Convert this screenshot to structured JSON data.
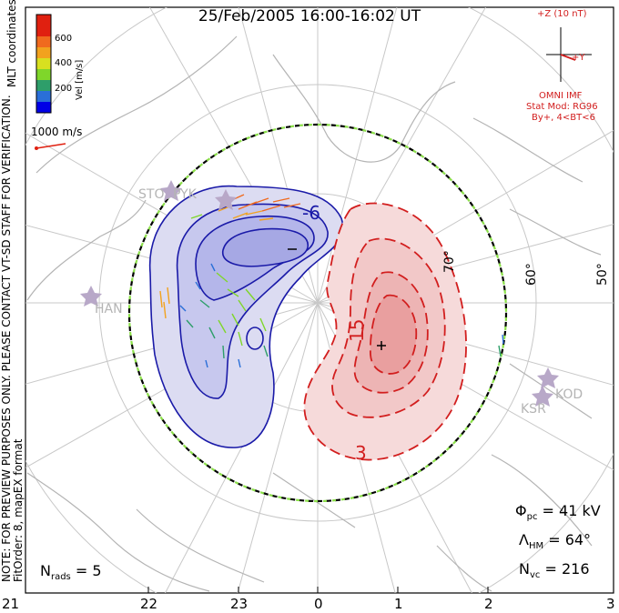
{
  "title": "25/Feb/2005 16:00-16:02 UT",
  "colorbar": {
    "ticks": [
      "600",
      "400",
      "200"
    ],
    "label": "Vel [m/s]",
    "colors": [
      "#0000e6",
      "#2a6fd8",
      "#2e9e6a",
      "#7fd62a",
      "#d8e020",
      "#f2a21e",
      "#f06a1e",
      "#e02010"
    ]
  },
  "mlt_coordinates": "MLT coordinates",
  "reference_vector": "1000 m/s",
  "imf": {
    "scale_label": "+Z (10 nT)",
    "y_label": "+Y",
    "source": "OMNI IMF",
    "model": "Stat Mod: RG96",
    "condition": "By+, 4<BT<6"
  },
  "preview_note": "NOTE: FOR PREVIEW PURPOSES ONLY. PLEASE CONTACT VT-SD STAFF FOR VERIFICATION.",
  "fit_note": "FitOrder: 8, mapEX format",
  "contours": {
    "neg_label": "-6",
    "pos_label_1": "15",
    "pos_label_2": "3",
    "min_marker": "−",
    "max_marker": "+"
  },
  "latitude_labels": [
    "70°",
    "60°",
    "50°"
  ],
  "stations": [
    "STO",
    "PYK",
    "HAN",
    "KSR",
    "KOD"
  ],
  "stats": {
    "phi_label": "Φ",
    "phi_sub": "pc",
    "phi_value": "= 41 kV",
    "lambda_label": "Λ",
    "lambda_sub": "HM",
    "lambda_value": "= 64°",
    "nvc_label": "N",
    "nvc_sub": "vc",
    "nvc_value": "= 216",
    "nrads_label": "N",
    "nrads_sub": "rads",
    "nrads_value": "= 5"
  },
  "mlt_axis": [
    "21",
    "22",
    "23",
    "0",
    "1",
    "2",
    "3"
  ]
}
